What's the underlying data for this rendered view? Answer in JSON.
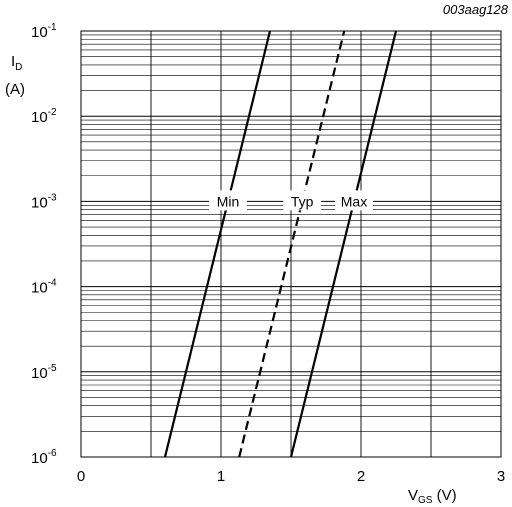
{
  "figure_id": "003aag128",
  "chart_data": {
    "type": "line",
    "title": "",
    "x_axis": {
      "label_main": "V",
      "label_sub": "GS",
      "label_unit": " (V)",
      "range": [
        0,
        3
      ],
      "ticks": [
        0,
        1,
        2,
        3
      ],
      "tick_labels": [
        "0",
        "1",
        "2",
        "3"
      ]
    },
    "y_axis": {
      "label_main": "I",
      "label_sub": "D",
      "label_unit": "(A)",
      "scale": "log",
      "range": [
        1e-06,
        0.1
      ],
      "ticks": [
        1e-06,
        1e-05,
        0.0001,
        0.001,
        0.01,
        0.1
      ],
      "tick_base": "10",
      "tick_exponents": [
        "-6",
        "-5",
        "-4",
        "-3",
        "-2",
        "-1"
      ]
    },
    "grid": true,
    "series": [
      {
        "name": "Min",
        "line_style": "solid",
        "x": [
          0.6,
          1.35
        ],
        "y": [
          1e-06,
          0.1
        ],
        "label_at": 0.001
      },
      {
        "name": "Typ",
        "line_style": "dashed",
        "x": [
          1.13,
          1.88
        ],
        "y": [
          1e-06,
          0.1
        ],
        "label_at": 0.001
      },
      {
        "name": "Max",
        "line_style": "solid",
        "x": [
          1.5,
          2.25
        ],
        "y": [
          1e-06,
          0.1
        ],
        "label_at": 0.001
      }
    ]
  }
}
